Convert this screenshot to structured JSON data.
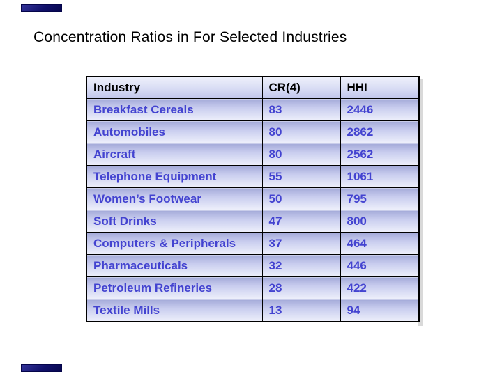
{
  "title": "Concentration Ratios in For Selected Industries",
  "table": {
    "headers": [
      "Industry",
      "CR(4)",
      "HHI"
    ],
    "rows": [
      [
        "Breakfast Cereals",
        "83",
        "2446"
      ],
      [
        "Automobiles",
        "80",
        "2862"
      ],
      [
        "Aircraft",
        "80",
        "2562"
      ],
      [
        "Telephone Equipment",
        "55",
        "1061"
      ],
      [
        "Women’s Footwear",
        "50",
        "795"
      ],
      [
        "Soft Drinks",
        "47",
        "800"
      ],
      [
        "Computers & Peripherals",
        "37",
        "464"
      ],
      [
        "Pharmaceuticals",
        "32",
        "446"
      ],
      [
        "Petroleum Refineries",
        "28",
        "422"
      ],
      [
        "Textile Mills",
        "13",
        "94"
      ]
    ]
  },
  "colors": {
    "data_text": "#4343d0",
    "header_text": "#000000",
    "grid_line": "#000000",
    "row_gradient_top": "#a4aad9",
    "row_gradient_bottom": "#eef0fb",
    "header_gradient_top": "#eef0fb",
    "header_gradient_bottom": "#c2c7ec",
    "deco_bar": "#11116b",
    "shadow": "#d9d9d9"
  }
}
